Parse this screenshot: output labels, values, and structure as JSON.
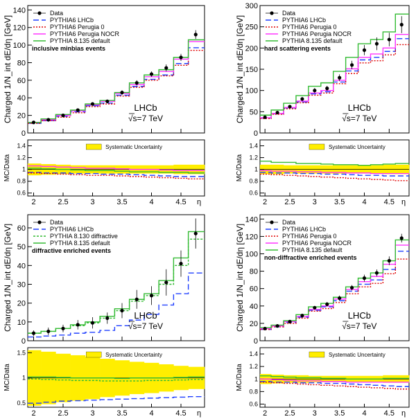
{
  "chart_data": [
    {
      "type": "line",
      "annotation": "inclusive minbias events",
      "ylabel": "Charged 1/N_int dE/dη [GeV]",
      "ratio_ylabel": "MC/Data",
      "xlabel": "η",
      "experiment": "LHCb",
      "energy": "√s=7 TeV",
      "syst_label": "Systematic Uncertainty",
      "x_edges": [
        1.9,
        2.125,
        2.375,
        2.625,
        2.875,
        3.125,
        3.375,
        3.625,
        3.875,
        4.125,
        4.375,
        4.625,
        4.9
      ],
      "x_ticks": [
        2,
        2.5,
        3,
        3.5,
        4,
        4.5
      ],
      "ylim": [
        0,
        145
      ],
      "y_ticks": [
        0,
        20,
        40,
        60,
        80,
        100,
        120,
        140
      ],
      "ratio_ylim": [
        0.55,
        1.5
      ],
      "ratio_ticks": [
        0.6,
        0.8,
        1,
        1.2,
        1.4
      ],
      "data": {
        "name": "Data",
        "x": [
          2,
          2.25,
          2.5,
          2.75,
          3,
          3.25,
          3.5,
          3.75,
          4,
          4.25,
          4.5,
          4.75
        ],
        "values": [
          12,
          15,
          20,
          26,
          33,
          36,
          46,
          57,
          67,
          74,
          86,
          112
        ],
        "errors": [
          1,
          1,
          1.5,
          1.5,
          2,
          2,
          2.5,
          3,
          3,
          4,
          4,
          5
        ]
      },
      "series": [
        {
          "name": "PYTHIA6 LHCb",
          "color": "#1f3fff",
          "dash": "8,4",
          "values": [
            11,
            14,
            19,
            24,
            31,
            34,
            43,
            53,
            61,
            66,
            79,
            97
          ],
          "ratio": [
            0.95,
            0.94,
            0.94,
            0.93,
            0.93,
            0.92,
            0.92,
            0.91,
            0.9,
            0.89,
            0.88,
            0.88
          ]
        },
        {
          "name": "PYTHIA6 Perugia 0",
          "color": "#e00000",
          "dash": "2,2",
          "values": [
            11,
            14,
            18,
            23,
            30,
            33,
            42,
            52,
            60,
            65,
            77,
            94
          ],
          "ratio": [
            0.94,
            0.93,
            0.92,
            0.91,
            0.9,
            0.9,
            0.89,
            0.88,
            0.87,
            0.86,
            0.85,
            0.84
          ]
        },
        {
          "name": "PYTHIA6 Perugia NOCR",
          "color": "#ff33ff",
          "dash": "",
          "values": [
            12,
            15,
            20,
            25,
            32,
            36,
            45,
            55,
            64,
            70,
            84,
            104
          ],
          "ratio": [
            1.06,
            1.05,
            1.04,
            1.03,
            1.02,
            1.02,
            1.01,
            1.0,
            1.0,
            0.99,
            0.98,
            0.98
          ]
        },
        {
          "name": "PYTHIA 8.135 default",
          "color": "#33bb33",
          "dash": "",
          "values": [
            12,
            16,
            21,
            26,
            33,
            37,
            46,
            57,
            66,
            72,
            86,
            106
          ],
          "ratio": [
            1.02,
            1.01,
            1.0,
            0.99,
            0.98,
            0.98,
            0.97,
            0.96,
            0.96,
            0.95,
            0.95,
            0.94
          ]
        }
      ],
      "syst_band": [
        0.1,
        0.09,
        0.08,
        0.07,
        0.07,
        0.07,
        0.07,
        0.07,
        0.07,
        0.07,
        0.08,
        0.08
      ]
    },
    {
      "type": "line",
      "annotation": "hard scattering events",
      "ylabel": "Charged 1/N_int dE/dη [GeV]",
      "ratio_ylabel": "MC/Data",
      "xlabel": "η",
      "experiment": "LHCb",
      "energy": "√s=7 TeV",
      "syst_label": "Systematic Uncertainty",
      "x_edges": [
        1.9,
        2.125,
        2.375,
        2.625,
        2.875,
        3.125,
        3.375,
        3.625,
        3.875,
        4.125,
        4.375,
        4.625,
        4.9
      ],
      "x_ticks": [
        2,
        2.5,
        3,
        3.5,
        4,
        4.5
      ],
      "ylim": [
        0,
        300
      ],
      "y_ticks": [
        0,
        50,
        100,
        150,
        200,
        250,
        300
      ],
      "ratio_ylim": [
        0.55,
        1.5
      ],
      "ratio_ticks": [
        0.6,
        0.8,
        1,
        1.2,
        1.4
      ],
      "data": {
        "name": "Data",
        "x": [
          2,
          2.25,
          2.5,
          2.75,
          3,
          3.25,
          3.5,
          3.75,
          4,
          4.25,
          4.5,
          4.75
        ],
        "values": [
          37,
          48,
          62,
          80,
          100,
          105,
          130,
          160,
          195,
          210,
          220,
          255
        ],
        "errors": [
          3,
          3,
          4,
          5,
          6,
          6,
          8,
          10,
          12,
          15,
          16,
          20
        ]
      },
      "series": [
        {
          "name": "PYTHIA6 LHCb",
          "color": "#1f3fff",
          "dash": "8,4",
          "values": [
            35,
            45,
            59,
            73,
            92,
            97,
            120,
            146,
            172,
            178,
            192,
            222
          ],
          "ratio": [
            0.95,
            0.94,
            0.94,
            0.93,
            0.93,
            0.92,
            0.92,
            0.91,
            0.9,
            0.9,
            0.89,
            0.89
          ]
        },
        {
          "name": "PYTHIA6 Perugia 0",
          "color": "#e00000",
          "dash": "2,2",
          "values": [
            34,
            44,
            57,
            71,
            89,
            94,
            116,
            140,
            165,
            170,
            184,
            208
          ],
          "ratio": [
            0.92,
            0.91,
            0.9,
            0.89,
            0.88,
            0.87,
            0.86,
            0.85,
            0.84,
            0.83,
            0.82,
            0.81
          ]
        },
        {
          "name": "PYTHIA6 Perugia NOCR",
          "color": "#ff33ff",
          "dash": "",
          "values": [
            36,
            46,
            60,
            75,
            94,
            100,
            124,
            151,
            178,
            186,
            200,
            232
          ],
          "ratio": [
            0.98,
            0.97,
            0.97,
            0.96,
            0.96,
            0.95,
            0.95,
            0.94,
            0.94,
            0.93,
            0.93,
            0.93
          ]
        },
        {
          "name": "PYTHIA 8.135 default",
          "color": "#33bb33",
          "dash": "",
          "values": [
            42,
            54,
            70,
            88,
            110,
            118,
            145,
            178,
            210,
            220,
            238,
            280
          ],
          "ratio": [
            1.14,
            1.12,
            1.12,
            1.1,
            1.1,
            1.09,
            1.08,
            1.08,
            1.07,
            1.08,
            1.09,
            1.1
          ]
        }
      ],
      "syst_band": [
        0.08,
        0.08,
        0.07,
        0.07,
        0.07,
        0.07,
        0.07,
        0.07,
        0.07,
        0.07,
        0.08,
        0.08
      ]
    },
    {
      "type": "line",
      "annotation": "diffractive enriched events",
      "ylabel": "Charged 1/N_int dE/dη [GeV]",
      "ratio_ylabel": "MC/Data",
      "xlabel": "η",
      "experiment": "LHCb",
      "energy": "√s=7 TeV",
      "syst_label": "Systematic Uncertainty",
      "x_edges": [
        1.9,
        2.125,
        2.375,
        2.625,
        2.875,
        3.125,
        3.375,
        3.625,
        3.875,
        4.125,
        4.375,
        4.625,
        4.9
      ],
      "x_ticks": [
        2,
        2.5,
        3,
        3.5,
        4,
        4.5
      ],
      "ylim": [
        0,
        67
      ],
      "y_ticks": [
        0,
        10,
        20,
        30,
        40,
        50,
        60
      ],
      "ratio_ylim": [
        0.42,
        1.6
      ],
      "ratio_ticks": [
        0.5,
        1,
        1.5
      ],
      "data": {
        "name": "Data",
        "x": [
          2,
          2.25,
          2.5,
          2.75,
          3,
          3.25,
          3.5,
          3.75,
          4,
          4.25,
          4.5,
          4.75
        ],
        "values": [
          4,
          5,
          6.5,
          8.5,
          9.5,
          12,
          16,
          22,
          24,
          31,
          41,
          57
        ],
        "errors": [
          1.5,
          2,
          2,
          2.5,
          3,
          3,
          4,
          5,
          5,
          7,
          7,
          8
        ]
      },
      "series": [
        {
          "name": "PYTHIA6 LHCb",
          "color": "#1f3fff",
          "dash": "8,4",
          "values": [
            2,
            2.5,
            3,
            4,
            4.5,
            5.5,
            8,
            11,
            14,
            19,
            25,
            36
          ],
          "ratio": [
            0.5,
            0.52,
            0.54,
            0.55,
            0.56,
            0.57,
            0.58,
            0.59,
            0.6,
            0.61,
            0.62,
            0.63
          ]
        },
        {
          "name": "PYTHIA 8.130 diffractive",
          "color": "#33bb33",
          "dash": "3,2",
          "values": [
            4,
            5,
            6.5,
            8,
            9.5,
            12,
            16,
            21,
            24,
            30,
            40,
            54
          ],
          "ratio": [
            0.98,
            0.97,
            0.96,
            0.95,
            0.95,
            0.94,
            0.94,
            0.94,
            0.95,
            0.95,
            0.96,
            0.97
          ]
        },
        {
          "name": "PYTHIA 8.135 default",
          "color": "#33bb33",
          "dash": "",
          "values": [
            4,
            5,
            6.5,
            8.5,
            10,
            13,
            17,
            22,
            25,
            32,
            44,
            58
          ],
          "ratio": [
            1.02,
            1.02,
            1.01,
            1.0,
            1.0,
            1.0,
            0.99,
            1.0,
            1.0,
            1.0,
            1.01,
            1.02
          ]
        }
      ],
      "syst_band": [
        0.55,
        0.52,
        0.48,
        0.45,
        0.42,
        0.38,
        0.35,
        0.32,
        0.3,
        0.27,
        0.24,
        0.22
      ]
    },
    {
      "type": "line",
      "annotation": "non-diffractive enriched events",
      "ylabel": "Charged 1/N_int dE/dη [GeV]",
      "ratio_ylabel": "MC/Data",
      "xlabel": "η",
      "experiment": "LHCb",
      "energy": "√s=7 TeV",
      "syst_label": "Systematic Uncertainty",
      "x_edges": [
        1.9,
        2.125,
        2.375,
        2.625,
        2.875,
        3.125,
        3.375,
        3.625,
        3.875,
        4.125,
        4.375,
        4.625,
        4.9
      ],
      "x_ticks": [
        2,
        2.5,
        3,
        3.5,
        4,
        4.5
      ],
      "ylim": [
        0,
        145
      ],
      "y_ticks": [
        0,
        20,
        40,
        60,
        80,
        100,
        120,
        140
      ],
      "ratio_ylim": [
        0.55,
        1.5
      ],
      "ratio_ticks": [
        0.6,
        0.8,
        1,
        1.2,
        1.4
      ],
      "data": {
        "name": "Data",
        "x": [
          2,
          2.25,
          2.5,
          2.75,
          3,
          3.25,
          3.5,
          3.75,
          4,
          4.25,
          4.5,
          4.75
        ],
        "values": [
          14,
          17,
          22,
          29,
          38,
          42,
          49,
          61,
          72,
          78,
          92,
          118
        ],
        "errors": [
          1,
          1,
          1.5,
          2,
          2,
          2.5,
          3,
          3,
          4,
          4,
          5,
          5
        ]
      },
      "series": [
        {
          "name": "PYTHIA6 LHCb",
          "color": "#1f3fff",
          "dash": "8,4",
          "values": [
            13,
            16,
            21,
            27,
            35,
            39,
            46,
            57,
            65,
            70,
            82,
            103
          ],
          "ratio": [
            0.96,
            0.95,
            0.95,
            0.94,
            0.94,
            0.93,
            0.93,
            0.92,
            0.91,
            0.9,
            0.89,
            0.88
          ]
        },
        {
          "name": "PYTHIA6 Perugia 0",
          "color": "#e00000",
          "dash": "2,2",
          "values": [
            13,
            16,
            20,
            26,
            34,
            37,
            44,
            54,
            62,
            66,
            77,
            94
          ],
          "ratio": [
            0.95,
            0.94,
            0.93,
            0.92,
            0.91,
            0.9,
            0.89,
            0.88,
            0.87,
            0.86,
            0.85,
            0.84
          ]
        },
        {
          "name": "PYTHIA6 Perugia NOCR",
          "color": "#ff33ff",
          "dash": "",
          "values": [
            14,
            17,
            22,
            28,
            36,
            40,
            48,
            59,
            68,
            74,
            88,
            110
          ],
          "ratio": [
            1.0,
            0.99,
            0.98,
            0.97,
            0.97,
            0.96,
            0.96,
            0.95,
            0.95,
            0.95,
            0.95,
            0.95
          ]
        },
        {
          "name": "PYTHIA 8.135 default",
          "color": "#33bb33",
          "dash": "",
          "values": [
            15,
            18,
            23,
            30,
            39,
            43,
            50,
            62,
            72,
            78,
            92,
            116
          ],
          "ratio": [
            1.05,
            1.04,
            1.03,
            1.02,
            1.02,
            1.01,
            1.01,
            1.0,
            1.0,
            1.0,
            1.01,
            1.01
          ]
        }
      ],
      "syst_band": [
        0.08,
        0.07,
        0.06,
        0.06,
        0.05,
        0.05,
        0.05,
        0.05,
        0.05,
        0.05,
        0.06,
        0.06
      ]
    }
  ]
}
